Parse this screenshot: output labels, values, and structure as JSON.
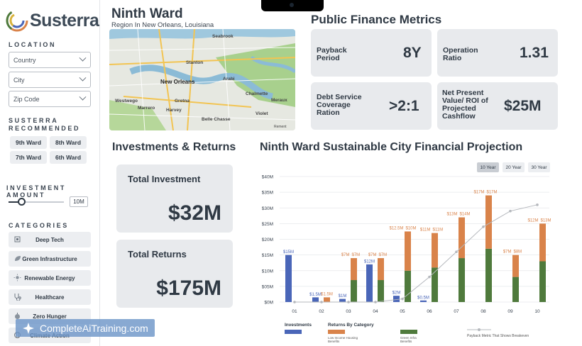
{
  "brand": {
    "name": "Susterra"
  },
  "sidebar": {
    "location_label": "LOCATION",
    "selects": [
      {
        "placeholder": "Country"
      },
      {
        "placeholder": "City"
      },
      {
        "placeholder": "Zip Code"
      }
    ],
    "recommended_label_line1": "SUSTERRA",
    "recommended_label_line2": "RECOMMENDED",
    "wards": [
      "9th Ward",
      "8th Ward",
      "7th Ward",
      "6th Ward"
    ],
    "investment_label": "INVESTMENT AMOUNT",
    "investment_value": "10M",
    "categories_label": "CATEGORIES",
    "categories": [
      {
        "label": "Deep Tech",
        "icon": "chip-icon"
      },
      {
        "label": "Green Infrastructure",
        "icon": "leaf-icon"
      },
      {
        "label": "Renewable Energy",
        "icon": "sun-icon"
      },
      {
        "label": "Healthcare",
        "icon": "stethoscope-icon"
      },
      {
        "label": "Zero Hunger",
        "icon": "apple-icon"
      },
      {
        "label": "Climate Action",
        "icon": "globe-icon"
      }
    ]
  },
  "watermark": {
    "text": "CompleteAiTraining.com"
  },
  "ward": {
    "title": "Ninth Ward",
    "subtitle": "Region In New Orleans, Louisiana",
    "map_labels": {
      "seabrook": "Seabrook",
      "new_orleans": "New Orleans",
      "arabi": "Arabi",
      "chalmette": "Chalmette",
      "westwego": "Westwego",
      "gretna": "Gretna",
      "harvey": "Harvey",
      "marrero": "Marrero",
      "meraux": "Meraux",
      "violet": "Violet",
      "belle_chasse": "Belle Chasse",
      "stanton": "Stanton",
      "map_attribution": "Rement"
    }
  },
  "metrics": {
    "title": "Public Finance Metrics",
    "items": [
      {
        "label_lines": [
          "Payback",
          "Period"
        ],
        "value": "8Y"
      },
      {
        "label_lines": [
          "Operation",
          "Ratio"
        ],
        "value": "1.31"
      },
      {
        "label_lines": [
          "Debt Service",
          "Coverage",
          "Ration"
        ],
        "value": ">2:1"
      },
      {
        "label_lines": [
          "Net Present",
          "Value/ ROI of",
          "Projected",
          "Cashflow"
        ],
        "value": "$25M"
      }
    ]
  },
  "investments": {
    "title": "Investments & Returns",
    "total_investment_label": "Total Investment",
    "total_investment_value": "$32M",
    "total_returns_label": "Total Returns",
    "total_returns_value": "$175M"
  },
  "projection": {
    "title": "Ninth Ward Sustainable City Financial Projection",
    "ranges": [
      "10 Year",
      "20 Year",
      "30 Year"
    ],
    "active_range": "10 Year"
  },
  "legend": {
    "investments": "Investments",
    "returns_by_category": "Returns By Category",
    "low_income_line1": "Low Income Housing",
    "low_income_line2": "Benefits",
    "green_infra_line1": "Green Infra",
    "green_infra_line2": "Benefits",
    "payback_metric": "Payback Metric That Shows Breakeven"
  },
  "colors": {
    "investments": "#4a66b8",
    "low_income_housing": "#d9834a",
    "green_infra": "#4f7a3c",
    "payback_line": "#b5b8bd",
    "accent_text": "#2f3944",
    "card_bg": "#e8eaed"
  },
  "chart_data": {
    "type": "bar",
    "categories": [
      "01",
      "02",
      "03",
      "04",
      "05",
      "06",
      "07",
      "08",
      "09",
      "10"
    ],
    "y_tick_labels": [
      "$0M",
      "$05M",
      "$10M",
      "$15M",
      "$20M",
      "$25M",
      "$30M",
      "$35M",
      "$40M"
    ],
    "ylim": [
      0,
      40
    ],
    "series": [
      {
        "name": "Investments",
        "values": [
          15,
          1.5,
          1,
          12,
          2,
          0.5,
          0,
          0,
          0,
          0
        ],
        "labels": [
          "$15M",
          "$1.5M",
          "$1M",
          "$12M",
          "$2M",
          "$0.5M",
          "",
          "",
          "",
          ""
        ]
      },
      {
        "name": "Low Income Housing Benefits",
        "values": [
          0,
          1.5,
          7,
          7,
          12.5,
          11,
          13,
          17,
          7,
          12
        ],
        "labels": [
          "",
          "$1.5M",
          "$7M",
          "$7M",
          "$12.5M",
          "$11M",
          "$13M",
          "$17M",
          "$7M",
          "$12M"
        ]
      },
      {
        "name": "Green Infra Benefits",
        "values": [
          0,
          0,
          7,
          7,
          10,
          11,
          14,
          17,
          8,
          13
        ],
        "labels": [
          "",
          "",
          "$7M",
          "$7M",
          "$10M",
          "$11M",
          "$14M",
          "$17M",
          "$8M",
          "$13M"
        ]
      }
    ],
    "payback_line": {
      "name": "Payback Metric That Shows Breakeven",
      "values": [
        0,
        0,
        0,
        0,
        1,
        8,
        16,
        24,
        29,
        31
      ]
    },
    "grid": true,
    "legend_position": "bottom"
  }
}
